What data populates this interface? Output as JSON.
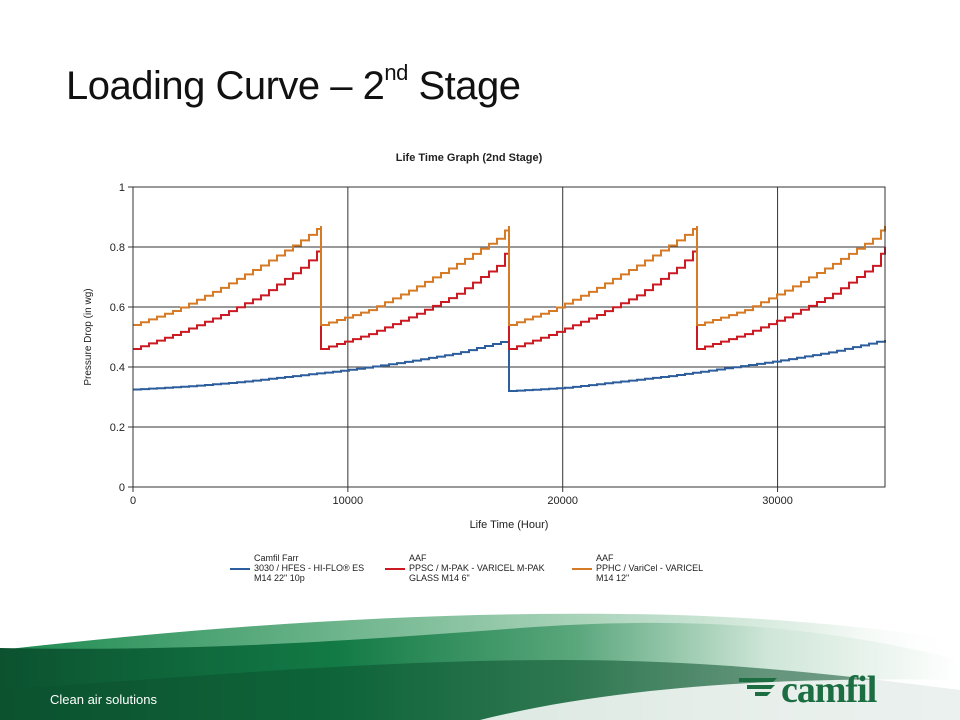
{
  "slide": {
    "title_main": "Loading Curve – 2",
    "title_sup": "nd",
    "title_end": " Stage",
    "footer_tagline": "Clean air solutions",
    "logo_text": "camfil"
  },
  "colors": {
    "blue": "#2c5d9c",
    "red": "#cc1a23",
    "orange": "#d67a25",
    "green_dark": "#0e5a36",
    "logo_green": "#1c6e42"
  },
  "chart_data": {
    "type": "line",
    "title": "Life Time Graph (2nd Stage)",
    "xlabel": "Life Time (Hour)",
    "ylabel": "Pressure Drop (in wg)",
    "xlim": [
      0,
      35000
    ],
    "ylim": [
      0,
      1
    ],
    "xticks": [
      0,
      10000,
      20000,
      30000
    ],
    "yticks": [
      0,
      0.2,
      0.4,
      0.6,
      0.8,
      1
    ],
    "grid": true,
    "step": true,
    "legend_position": "bottom",
    "series": [
      {
        "name": "Camfil Farr 3030 / HFES - HI-FLO® ES M14 22\" 10p",
        "legend_lines": [
          "Camfil Farr",
          "3030 / HFES - HI-FLO® ES",
          "M14 22\" 10p"
        ],
        "color": "#2c5d9c",
        "segments": [
          {
            "x": [
              0,
              2500,
              5000,
              7500,
              10000,
              12500,
              15000,
              17500
            ],
            "y": [
              0.325,
              0.335,
              0.35,
              0.37,
              0.39,
              0.415,
              0.445,
              0.49
            ]
          },
          {
            "x": [
              17500,
              20000,
              22500,
              25000,
              27500,
              30000,
              32500,
              35000
            ],
            "y": [
              0.32,
              0.33,
              0.35,
              0.37,
              0.395,
              0.42,
              0.45,
              0.49
            ]
          }
        ]
      },
      {
        "name": "AAF PPSC / M-PAK - VARICEL M-PAK GLASS M14 6\"",
        "legend_lines": [
          "AAF",
          "PPSC / M-PAK - VARICEL M-PAK",
          "GLASS M14 6\""
        ],
        "color": "#cc1a23",
        "segments": [
          {
            "x": [
              0,
              2000,
              4000,
              6000,
              8000,
              8750
            ],
            "y": [
              0.46,
              0.51,
              0.57,
              0.64,
              0.74,
              0.8
            ]
          },
          {
            "x": [
              8750,
              11000,
              13000,
              15000,
              17000,
              17500
            ],
            "y": [
              0.46,
              0.51,
              0.57,
              0.64,
              0.74,
              0.8
            ]
          },
          {
            "x": [
              17500,
              19500,
              21500,
              23500,
              25500,
              26250
            ],
            "y": [
              0.46,
              0.51,
              0.57,
              0.64,
              0.74,
              0.8
            ]
          },
          {
            "x": [
              26250,
              28500,
              30500,
              32500,
              34500,
              35000
            ],
            "y": [
              0.46,
              0.51,
              0.57,
              0.64,
              0.74,
              0.8
            ]
          }
        ]
      },
      {
        "name": "AAF PPHC / VariCel - VARICEL M14 12\"",
        "legend_lines": [
          "AAF",
          "PPHC / VariCel - VARICEL",
          "M14 12\""
        ],
        "color": "#d67a25",
        "segments": [
          {
            "x": [
              0,
              2000,
              4000,
              6000,
              8000,
              8750
            ],
            "y": [
              0.54,
              0.59,
              0.66,
              0.74,
              0.83,
              0.87
            ]
          },
          {
            "x": [
              8750,
              11000,
              13000,
              15000,
              17000,
              17500
            ],
            "y": [
              0.54,
              0.59,
              0.66,
              0.74,
              0.83,
              0.87
            ]
          },
          {
            "x": [
              17500,
              19500,
              21500,
              23500,
              25500,
              26250
            ],
            "y": [
              0.54,
              0.59,
              0.66,
              0.74,
              0.83,
              0.87
            ]
          },
          {
            "x": [
              26250,
              28500,
              30500,
              32500,
              34500,
              35000
            ],
            "y": [
              0.54,
              0.59,
              0.66,
              0.74,
              0.83,
              0.87
            ]
          }
        ]
      }
    ]
  }
}
